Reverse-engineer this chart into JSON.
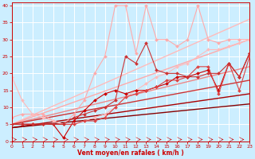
{
  "xlabel": "Vent moyen/en rafales ( km/h )",
  "xlim": [
    0,
    23
  ],
  "ylim": [
    0,
    41
  ],
  "xticks": [
    0,
    1,
    2,
    3,
    4,
    5,
    6,
    7,
    8,
    9,
    10,
    11,
    12,
    13,
    14,
    15,
    16,
    17,
    18,
    19,
    20,
    21,
    22,
    23
  ],
  "yticks": [
    0,
    5,
    10,
    15,
    20,
    25,
    30,
    35,
    40
  ],
  "bg_color": "#cceeff",
  "grid_color": "#ffffff",
  "series": [
    {
      "x": [
        0,
        1,
        2,
        3,
        4,
        5,
        6,
        7,
        8,
        9,
        10,
        11,
        12,
        13,
        14,
        15,
        16,
        17,
        18,
        19,
        20,
        21,
        22,
        23
      ],
      "y": [
        7,
        8,
        8,
        8,
        6,
        5,
        8,
        12,
        20,
        25,
        40,
        40,
        26,
        40,
        30,
        30,
        28,
        30,
        40,
        30,
        29,
        30,
        30,
        30
      ],
      "color": "#ffaaaa",
      "marker": "D",
      "markersize": 2.0,
      "linewidth": 0.8,
      "zorder": 2
    },
    {
      "x": [
        0,
        1,
        2,
        3,
        4,
        5,
        6,
        7,
        8,
        9,
        10,
        11,
        12,
        13,
        14,
        15,
        16,
        17,
        18,
        19,
        20,
        21,
        22,
        23
      ],
      "y": [
        19,
        12,
        8,
        7,
        6,
        5,
        5,
        6,
        7,
        8,
        10,
        13,
        15,
        17,
        19,
        20,
        22,
        23,
        25,
        27,
        27,
        28,
        29,
        30
      ],
      "color": "#ffbbbb",
      "marker": "D",
      "markersize": 2.0,
      "linewidth": 0.8,
      "zorder": 2
    },
    {
      "x": [
        0,
        1,
        2,
        3,
        4,
        5,
        6,
        7,
        8,
        9,
        10,
        11,
        12,
        13,
        14,
        15,
        16,
        17,
        18,
        19,
        20,
        21,
        22,
        23
      ],
      "y": [
        5,
        5,
        5,
        5,
        5,
        1,
        6,
        9,
        12,
        14,
        15,
        14,
        15,
        15,
        16,
        17,
        19,
        19,
        20,
        21,
        15,
        23,
        19,
        26
      ],
      "color": "#cc0000",
      "marker": "D",
      "markersize": 2.0,
      "linewidth": 0.8,
      "zorder": 3
    },
    {
      "x": [
        0,
        1,
        2,
        3,
        4,
        5,
        6,
        7,
        8,
        9,
        10,
        11,
        12,
        13,
        14,
        15,
        16,
        17,
        18,
        19,
        20,
        21,
        22,
        23
      ],
      "y": [
        5,
        5,
        5,
        5,
        5,
        5,
        5,
        6,
        6,
        7,
        10,
        13,
        14,
        15,
        16,
        18,
        18,
        19,
        22,
        22,
        14,
        23,
        15,
        25
      ],
      "color": "#dd4444",
      "marker": "D",
      "markersize": 2.0,
      "linewidth": 0.8,
      "zorder": 3
    },
    {
      "x": [
        0,
        1,
        2,
        3,
        4,
        5,
        6,
        7,
        8,
        9,
        10,
        11,
        12,
        13,
        14,
        15,
        16,
        17,
        18,
        19,
        20,
        21,
        22,
        23
      ],
      "y": [
        5,
        5,
        5,
        5,
        5,
        5,
        7,
        8,
        9,
        10,
        12,
        25,
        23,
        29,
        21,
        20,
        20,
        19,
        19,
        20,
        20,
        23,
        19,
        26
      ],
      "color": "#cc3333",
      "marker": "D",
      "markersize": 2.0,
      "linewidth": 0.8,
      "zorder": 3
    },
    {
      "x": [
        0,
        23
      ],
      "y": [
        5,
        36
      ],
      "color": "#ffbbbb",
      "marker": null,
      "markersize": 0,
      "linewidth": 1.0,
      "zorder": 1
    },
    {
      "x": [
        0,
        23
      ],
      "y": [
        5,
        30
      ],
      "color": "#ffaaaa",
      "marker": null,
      "markersize": 0,
      "linewidth": 1.0,
      "zorder": 1
    },
    {
      "x": [
        0,
        23
      ],
      "y": [
        5,
        22
      ],
      "color": "#ee8888",
      "marker": null,
      "markersize": 0,
      "linewidth": 1.0,
      "zorder": 1
    },
    {
      "x": [
        0,
        23
      ],
      "y": [
        5,
        18
      ],
      "color": "#cc3333",
      "marker": null,
      "markersize": 0,
      "linewidth": 1.0,
      "zorder": 1
    },
    {
      "x": [
        0,
        23
      ],
      "y": [
        4,
        14
      ],
      "color": "#aa0000",
      "marker": null,
      "markersize": 0,
      "linewidth": 1.0,
      "zorder": 1
    },
    {
      "x": [
        0,
        23
      ],
      "y": [
        4,
        11
      ],
      "color": "#880000",
      "marker": null,
      "markersize": 0,
      "linewidth": 1.0,
      "zorder": 1
    }
  ],
  "arrow_color": "#cc0000",
  "tick_color": "#cc0000",
  "label_color": "#cc0000"
}
